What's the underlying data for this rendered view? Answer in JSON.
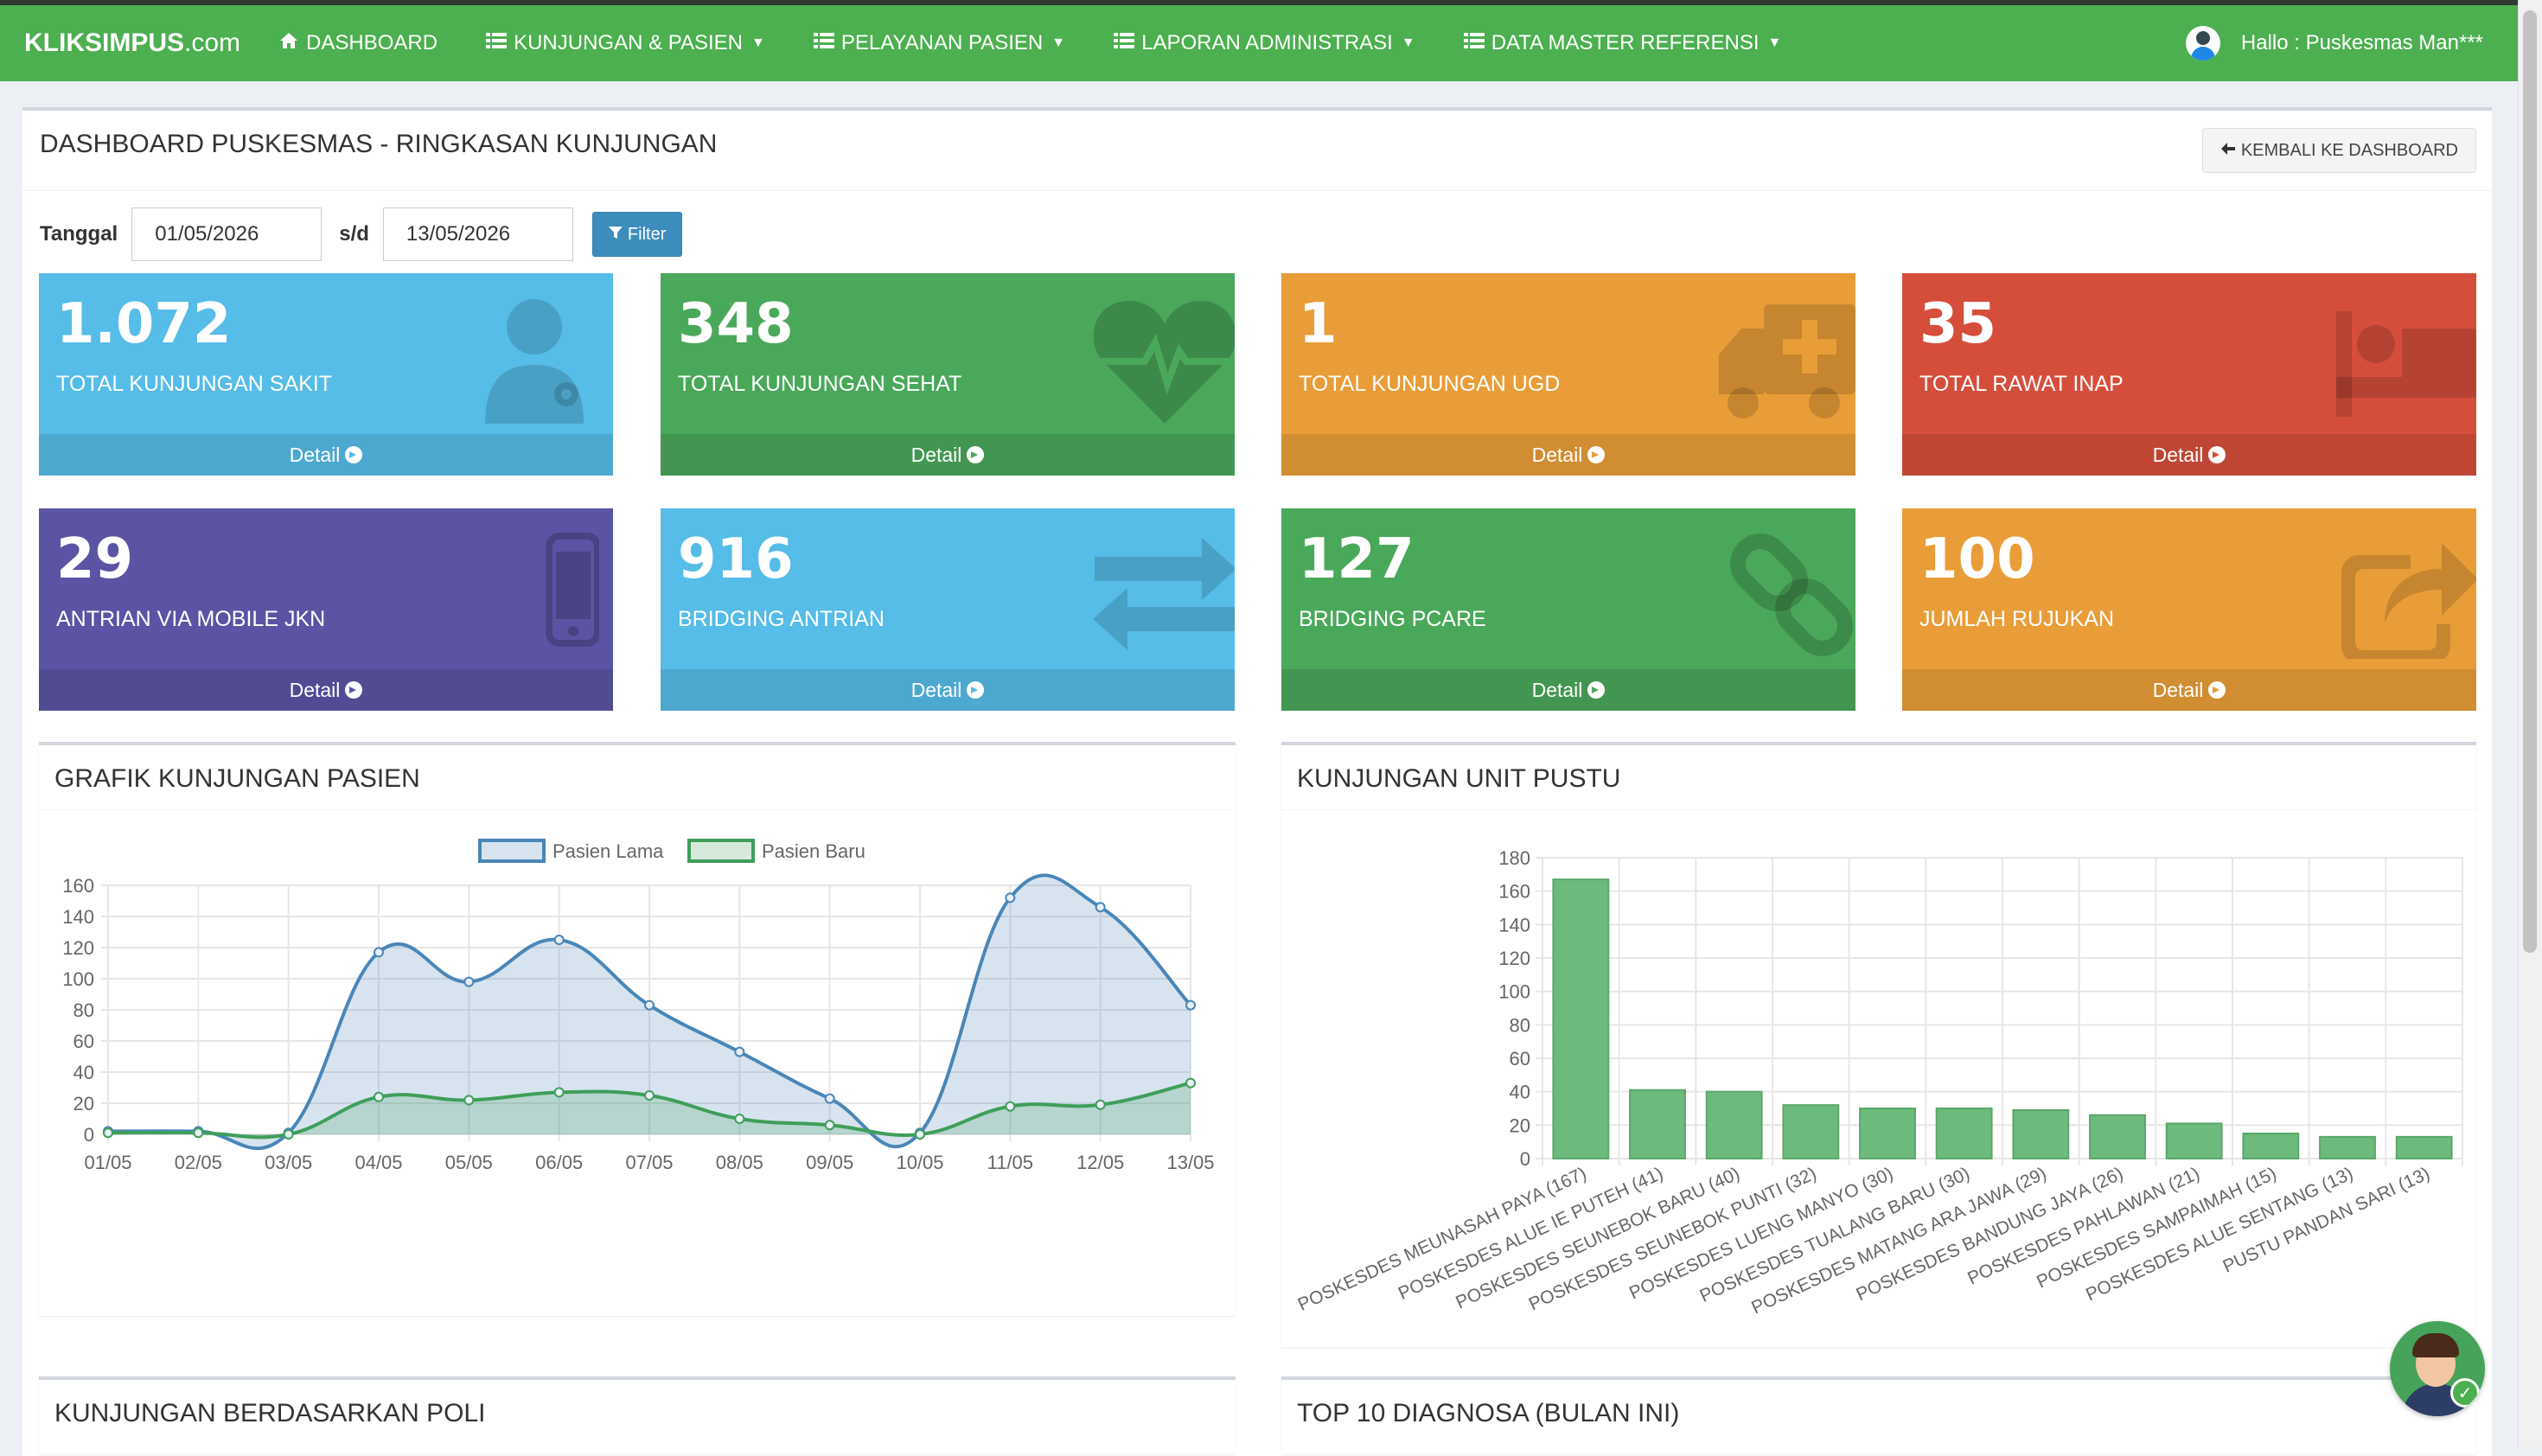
{
  "navbar": {
    "brand_bold": "KLIKSIMPUS",
    "brand_rest": ".com",
    "items": [
      {
        "label": "DASHBOARD",
        "icon": "home-icon",
        "dropdown": false
      },
      {
        "label": "KUNJUNGAN & PASIEN",
        "icon": "list-icon",
        "dropdown": true
      },
      {
        "label": "PELAYANAN PASIEN",
        "icon": "list-icon",
        "dropdown": true
      },
      {
        "label": "LAPORAN ADMINISTRASI",
        "icon": "list-icon",
        "dropdown": true
      },
      {
        "label": "DATA MASTER REFERENSI",
        "icon": "list-icon",
        "dropdown": true
      }
    ],
    "user_greeting": "Hallo : Puskesmas Man***"
  },
  "header": {
    "title": "DASHBOARD PUSKESMAS - RINGKASAN KUNJUNGAN",
    "back_label": "KEMBALI KE DASHBOARD"
  },
  "filter": {
    "label": "Tanggal",
    "from": "01/05/2026",
    "separator": "s/d",
    "to": "13/05/2026",
    "button": "Filter"
  },
  "stats": [
    {
      "value": "1.072",
      "label": "TOTAL KUNJUNGAN SAKIT",
      "detail": "Detail",
      "icon": "doctor-icon",
      "color": "#56bce8"
    },
    {
      "value": "348",
      "label": "TOTAL KUNJUNGAN SEHAT",
      "detail": "Detail",
      "icon": "heartbeat-icon",
      "color": "#4aa85b"
    },
    {
      "value": "1",
      "label": "TOTAL KUNJUNGAN UGD",
      "detail": "Detail",
      "icon": "ambulance-icon",
      "color": "#e99d38"
    },
    {
      "value": "35",
      "label": "TOTAL RAWAT INAP",
      "detail": "Detail",
      "icon": "bed-icon",
      "color": "#d54e3b"
    },
    {
      "value": "29",
      "label": "ANTRIAN VIA MOBILE JKN",
      "detail": "Detail",
      "icon": "mobile-icon",
      "color": "#5b54a4"
    },
    {
      "value": "916",
      "label": "BRIDGING ANTRIAN",
      "detail": "Detail",
      "icon": "exchange-icon",
      "color": "#56bce8"
    },
    {
      "value": "127",
      "label": "BRIDGING PCARE",
      "detail": "Detail",
      "icon": "link-icon",
      "color": "#4aa85b"
    },
    {
      "value": "100",
      "label": "JUMLAH RUJUKAN",
      "detail": "Detail",
      "icon": "share-icon",
      "color": "#e99d38"
    }
  ],
  "panels": {
    "line_title": "GRAFIK KUNJUNGAN PASIEN",
    "bar_title": "KUNJUNGAN UNIT PUSTU",
    "poli_title": "KUNJUNGAN BERDASARKAN POLI",
    "diag_title": "TOP 10 DIAGNOSA (BULAN INI)"
  },
  "chart_data": [
    {
      "type": "line",
      "title": "GRAFIK KUNJUNGAN PASIEN",
      "x": [
        "01/05",
        "02/05",
        "03/05",
        "04/05",
        "05/05",
        "06/05",
        "07/05",
        "08/05",
        "09/05",
        "10/05",
        "11/05",
        "12/05",
        "13/05"
      ],
      "series": [
        {
          "name": "Pasien Lama",
          "color": "#4a86b8",
          "values": [
            2,
            2,
            1,
            117,
            98,
            125,
            83,
            53,
            23,
            1,
            152,
            146,
            83
          ]
        },
        {
          "name": "Pasien Baru",
          "color": "#3f9e5a",
          "values": [
            1,
            1,
            0,
            24,
            22,
            27,
            25,
            10,
            6,
            0,
            18,
            19,
            33
          ]
        }
      ],
      "ylim": [
        0,
        160
      ],
      "yticks": [
        0,
        20,
        40,
        60,
        80,
        100,
        120,
        140,
        160
      ],
      "legend": "top",
      "grid": true
    },
    {
      "type": "bar",
      "title": "KUNJUNGAN UNIT PUSTU",
      "categories": [
        "POSKESDES MEUNASAH PAYA (167)",
        "POSKESDES ALUE IE PUTEH (41)",
        "POSKESDES SEUNEBOK BARU (40)",
        "POSKESDES SEUNEBOK PUNTI (32)",
        "POSKESDES LUENG MANYO (30)",
        "POSKESDES TUALANG BARU (30)",
        "POSKESDES MATANG ARA JAWA (29)",
        "POSKESDES BANDUNG JAYA (26)",
        "POSKESDES PAHLAWAN (21)",
        "POSKESDES SAMPAIMAH (15)",
        "POSKESDES ALUE SENTANG (13)",
        "PUSTU PANDAN SARI (13)"
      ],
      "values": [
        167,
        41,
        40,
        32,
        30,
        30,
        29,
        26,
        21,
        15,
        13,
        13
      ],
      "color": "#6dbb7c",
      "ylim": [
        0,
        180
      ],
      "yticks": [
        0,
        20,
        40,
        60,
        80,
        100,
        120,
        140,
        160,
        180
      ],
      "grid": true
    }
  ]
}
